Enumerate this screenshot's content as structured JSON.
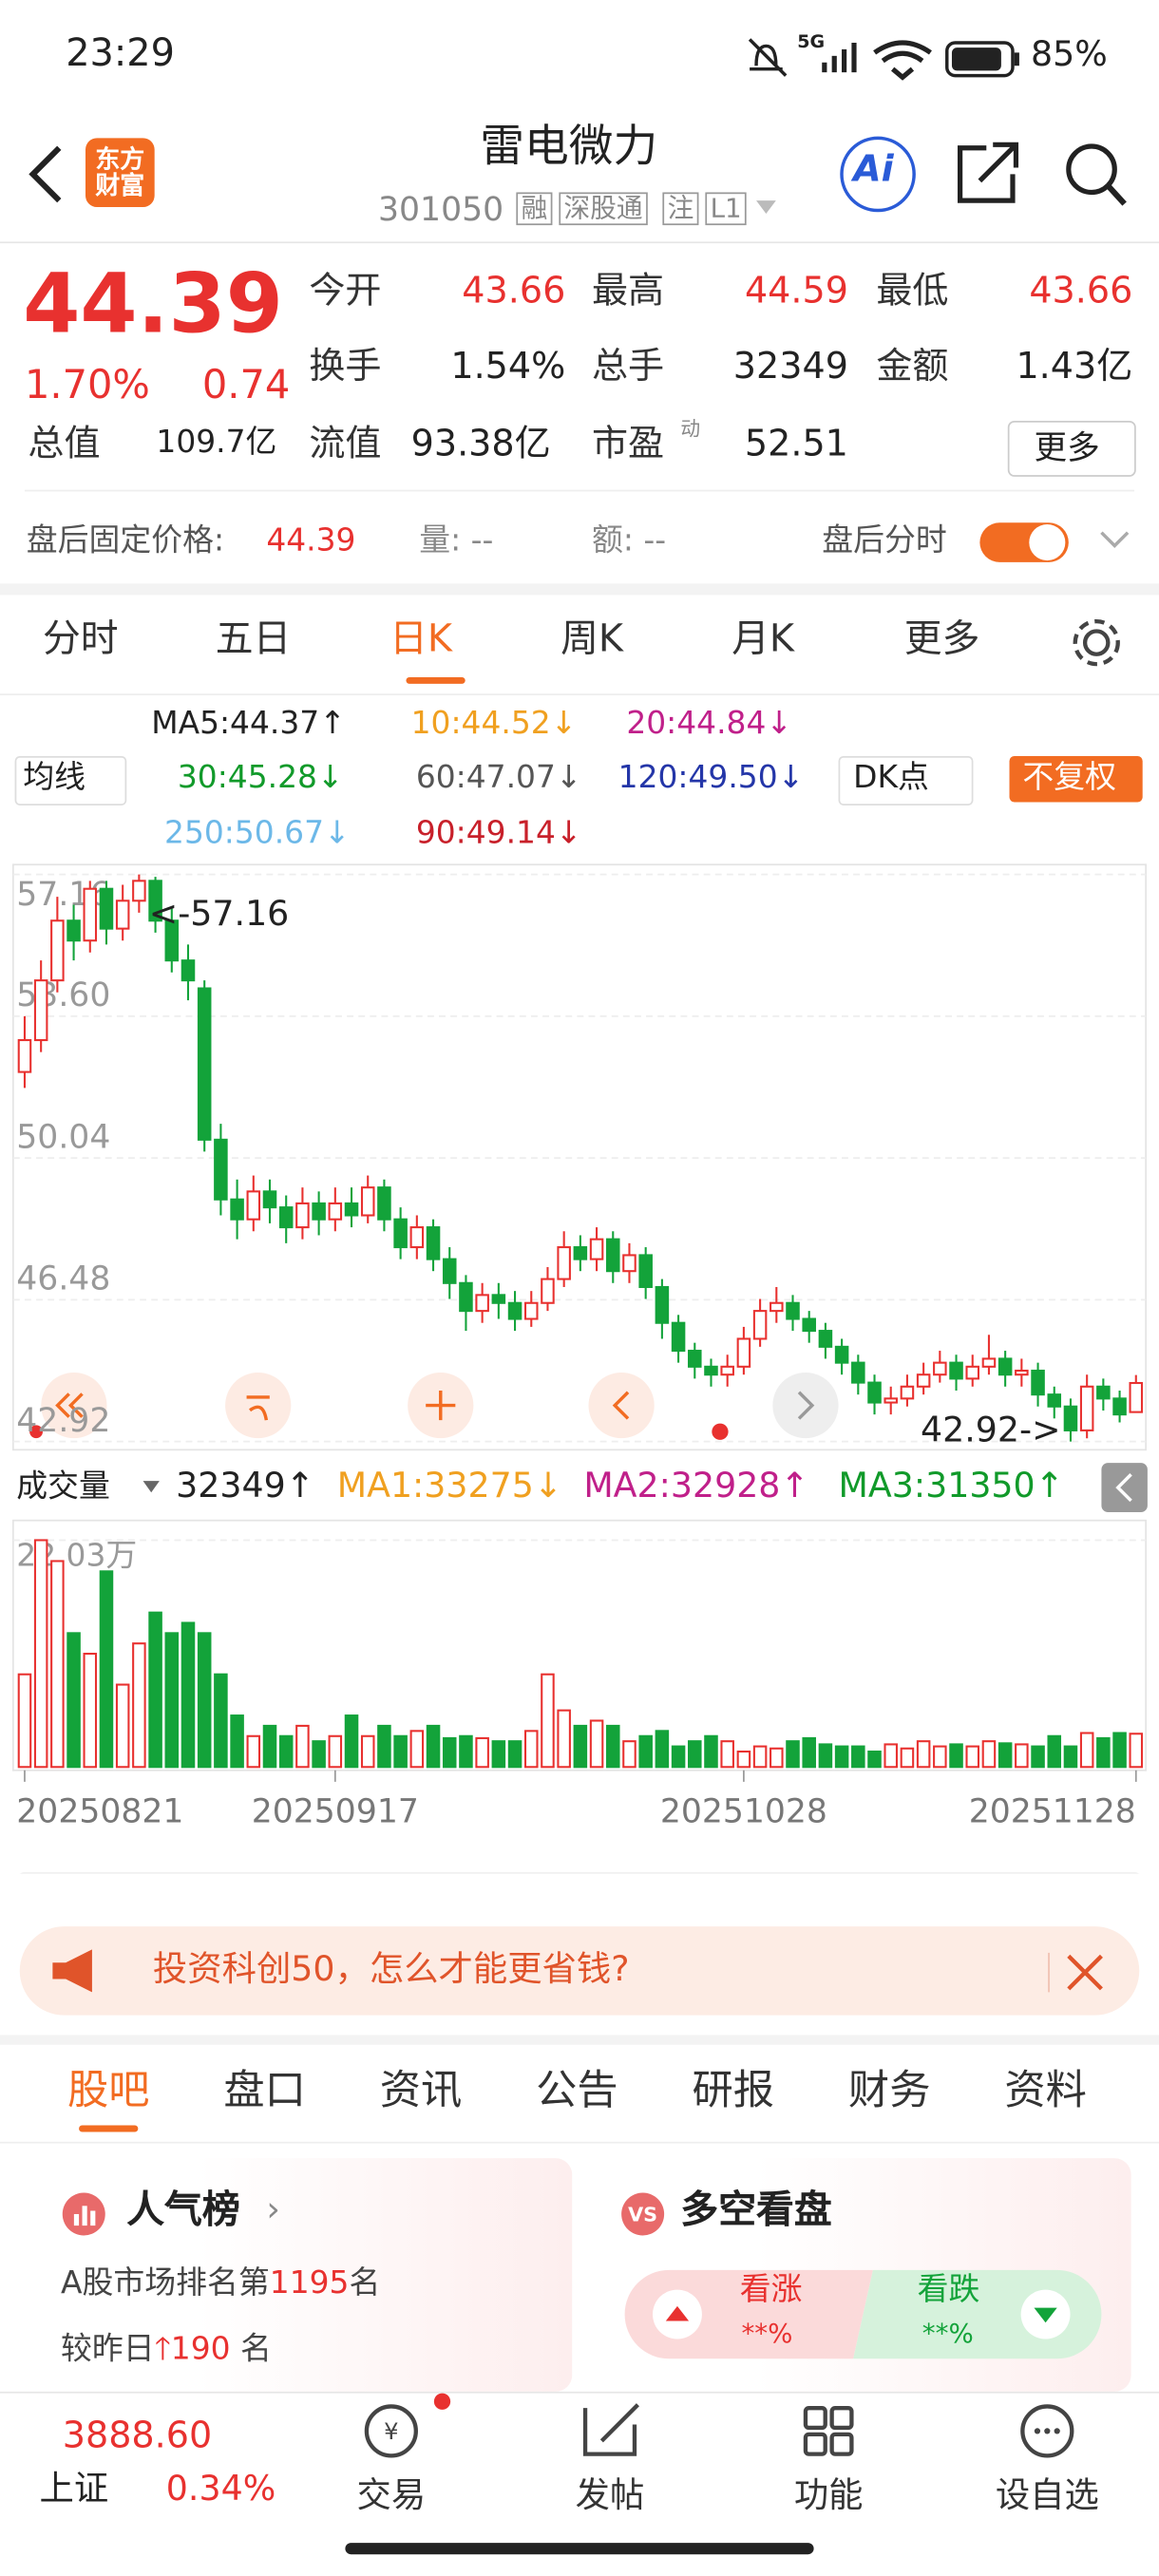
{
  "status": {
    "time": "23:29",
    "network": "5G",
    "battery": "85%"
  },
  "header": {
    "logo": "东方财富",
    "name": "雷电微力",
    "code": "301050",
    "tags": [
      "融",
      "深股通",
      "注",
      "L1"
    ],
    "ai": "Ai"
  },
  "quote": {
    "price": "44.39",
    "pct": "1.70%",
    "change": "0.74",
    "fields": [
      {
        "label": "今开",
        "value": "43.66"
      },
      {
        "label": "最高",
        "value": "44.59"
      },
      {
        "label": "最低",
        "value": "43.66"
      },
      {
        "label": "换手",
        "value": "1.54%"
      },
      {
        "label": "总手",
        "value": "32349"
      },
      {
        "label": "金额",
        "value": "1.43亿"
      },
      {
        "label": "总值",
        "value": "109.7亿"
      },
      {
        "label": "流值",
        "value": "93.38亿"
      },
      {
        "label": "市盈",
        "value": "52.51"
      }
    ],
    "pe_note": "动",
    "more": "更多"
  },
  "after_hours": {
    "label": "盘后固定价格:",
    "price": "44.39",
    "volume": "量: --",
    "amount": "额: --",
    "toggle": "盘后分时"
  },
  "tabs": [
    "分时",
    "五日",
    "日K",
    "周K",
    "月K",
    "更多"
  ],
  "ma_legend": {
    "selector": "均线",
    "dk": "DK点",
    "adjust": "不复权",
    "items": [
      {
        "text": "MA5:44.37↑",
        "color": "#222222"
      },
      {
        "text": "10:44.52↓",
        "color": "#f0a020"
      },
      {
        "text": "20:44.84↓",
        "color": "#c0208a"
      },
      {
        "text": "30:45.28↓",
        "color": "#119a2a"
      },
      {
        "text": "60:47.07↓",
        "color": "#555555"
      },
      {
        "text": "120:49.50↓",
        "color": "#2436a8"
      },
      {
        "text": "250:50.67↓",
        "color": "#6cb8e8"
      },
      {
        "text": "90:49.14↓",
        "color": "#c8202a"
      }
    ]
  },
  "chart_data": {
    "type": "candlestick",
    "ylim": [
      42.92,
      57.16
    ],
    "yticks": [
      57.16,
      {
        "value": 53.6,
        "label": "53.60"
      },
      50.04,
      46.48,
      42.92
    ],
    "annotations": [
      "<-57.16",
      "42.92->"
    ],
    "up_color": "#e8312f",
    "down_color": "#13a33a",
    "open": [
      52.2,
      53.0,
      54.5,
      56.0,
      55.5,
      56.8,
      55.8,
      56.5,
      57.0,
      56.0,
      55.0,
      54.3,
      50.5,
      49.0,
      48.5,
      49.2,
      48.8,
      48.3,
      48.9,
      48.5,
      48.9,
      48.6,
      49.3,
      48.5,
      47.8,
      48.3,
      47.5,
      46.9,
      46.2,
      46.6,
      46.4,
      46.0,
      46.4,
      47.0,
      47.8,
      47.5,
      48.0,
      47.2,
      47.6,
      46.8,
      45.9,
      45.2,
      44.8,
      44.6,
      44.8,
      45.5,
      46.2,
      46.4,
      46.0,
      45.7,
      45.3,
      44.9,
      44.4,
      43.9,
      44.0,
      44.3,
      44.6,
      44.9,
      44.5,
      44.8,
      45.0,
      44.6,
      44.7,
      44.1,
      43.8,
      43.2,
      44.3,
      44.0,
      43.66
    ],
    "close": [
      53.0,
      54.5,
      56.0,
      55.5,
      56.8,
      55.8,
      56.5,
      57.0,
      56.0,
      55.0,
      54.5,
      50.5,
      49.0,
      48.5,
      49.2,
      48.8,
      48.3,
      48.9,
      48.5,
      48.9,
      48.6,
      49.3,
      48.5,
      47.8,
      48.3,
      47.5,
      46.9,
      46.2,
      46.6,
      46.4,
      46.0,
      46.4,
      47.0,
      47.8,
      47.5,
      48.0,
      47.2,
      47.6,
      46.8,
      45.9,
      45.2,
      44.8,
      44.6,
      44.8,
      45.5,
      46.2,
      46.4,
      46.0,
      45.7,
      45.3,
      44.9,
      44.4,
      43.9,
      44.0,
      44.3,
      44.6,
      44.9,
      44.5,
      44.8,
      45.0,
      44.6,
      44.7,
      44.1,
      43.8,
      43.2,
      44.3,
      44.0,
      43.6,
      44.39
    ],
    "high": [
      53.6,
      55.0,
      56.6,
      56.4,
      57.0,
      57.0,
      56.9,
      57.16,
      57.1,
      56.3,
      55.4,
      54.5,
      50.9,
      49.5,
      49.6,
      49.5,
      49.1,
      49.3,
      49.2,
      49.3,
      49.3,
      49.6,
      49.5,
      48.8,
      48.6,
      48.5,
      47.8,
      47.1,
      46.9,
      46.9,
      46.7,
      46.7,
      47.3,
      48.2,
      48.1,
      48.3,
      48.2,
      47.9,
      47.8,
      47.0,
      46.1,
      45.4,
      45.0,
      45.1,
      45.8,
      46.5,
      46.8,
      46.6,
      46.2,
      45.9,
      45.5,
      45.1,
      44.6,
      44.3,
      44.6,
      44.9,
      45.2,
      45.1,
      45.1,
      45.6,
      45.2,
      45.0,
      44.9,
      44.3,
      44.0,
      44.6,
      44.5,
      44.2,
      44.59
    ],
    "low": [
      51.8,
      52.7,
      54.2,
      55.0,
      55.2,
      55.4,
      55.5,
      56.2,
      55.7,
      54.7,
      54.0,
      50.2,
      48.6,
      48.0,
      48.2,
      48.4,
      47.9,
      48.0,
      48.1,
      48.2,
      48.3,
      48.4,
      48.2,
      47.5,
      47.5,
      47.2,
      46.5,
      45.7,
      45.9,
      46.0,
      45.7,
      45.8,
      46.2,
      46.8,
      47.2,
      47.2,
      46.9,
      46.9,
      46.5,
      45.5,
      44.9,
      44.5,
      44.3,
      44.3,
      44.6,
      45.3,
      45.9,
      45.7,
      45.4,
      45.0,
      44.6,
      44.1,
      43.6,
      43.6,
      43.8,
      44.1,
      44.4,
      44.2,
      44.3,
      44.6,
      44.3,
      44.3,
      43.8,
      43.5,
      42.92,
      43.0,
      43.7,
      43.4,
      43.66
    ],
    "xticks": [
      {
        "value": 0,
        "label": "20250821"
      },
      {
        "value": 19,
        "label": "20250917"
      },
      {
        "value": 44,
        "label": "20251028"
      },
      {
        "value": 68,
        "label": "20251128"
      }
    ]
  },
  "volume_legend": {
    "title": "成交量",
    "current": "32349↑",
    "ma1": "MA1:33275↓",
    "ma2": "MA2:32928↑",
    "ma3": "MA3:31350↑"
  },
  "volume_chart": {
    "type": "bar",
    "ylim": [
      0,
      22.03
    ],
    "yticks": [
      {
        "value": 22.03,
        "label": "22.03万"
      }
    ],
    "values": [
      9,
      22.03,
      20,
      13,
      11,
      19,
      8,
      12,
      15,
      13,
      14,
      13,
      9,
      5,
      3,
      4,
      3,
      4,
      2.5,
      3,
      5,
      3,
      4,
      3,
      3.5,
      4,
      2.8,
      3,
      2.8,
      2.5,
      2.5,
      3.5,
      9,
      5.5,
      4,
      4.5,
      4,
      2.5,
      3,
      3.5,
      2,
      2.5,
      3,
      2.5,
      1.5,
      2,
      1.8,
      2.5,
      2.8,
      2.2,
      2,
      2,
      1.5,
      2.2,
      1.8,
      2.5,
      2,
      2.2,
      2,
      2.5,
      2.3,
      2.2,
      2,
      3,
      2,
      3.3,
      2.8,
      3.3,
      3.23
    ]
  },
  "banner": "投资科创50，怎么才能更省钱?",
  "sub_tabs": [
    "股吧",
    "盘口",
    "资讯",
    "公告",
    "研报",
    "财务",
    "资料"
  ],
  "cards": {
    "popularity": {
      "title": "人气榜",
      "rank_prefix": "A股市场排名第",
      "rank": "1195",
      "rank_suffix": "名",
      "change_prefix": "较昨日",
      "change": "190",
      "change_suffix": "名"
    },
    "sentiment": {
      "title": "多空看盘",
      "bull": "看涨",
      "bull_value": "**%",
      "bear": "看跌",
      "bear_value": "**%"
    }
  },
  "bottom_nav": {
    "index_value": "3888.60",
    "index_name": "上证",
    "index_pct": "0.34%",
    "items": [
      "交易",
      "发帖",
      "功能",
      "设自选"
    ]
  }
}
